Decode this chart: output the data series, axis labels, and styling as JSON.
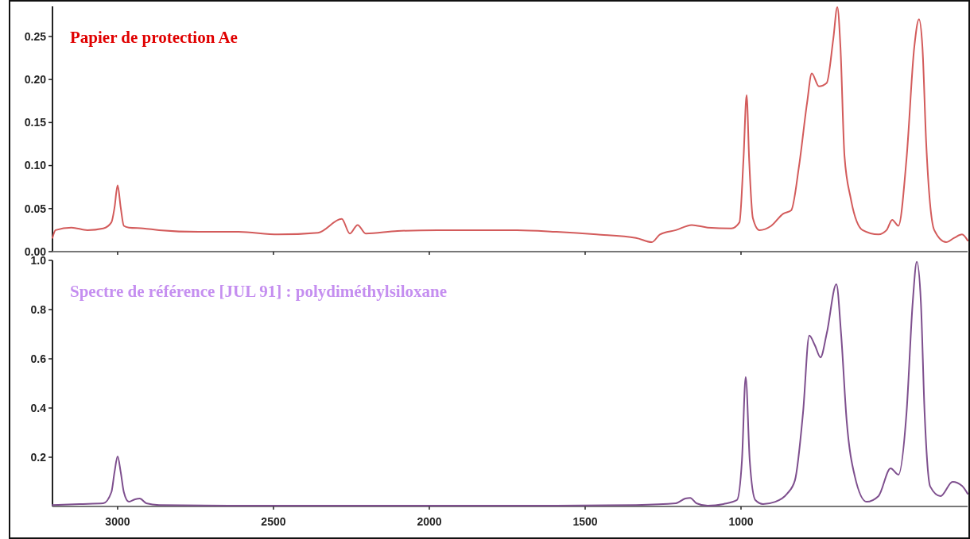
{
  "chart_data": [
    {
      "type": "line",
      "title": "Papier de protection Ae",
      "xlim": [
        3209,
        273
      ],
      "xticks": [
        3000,
        2500,
        2000,
        1500,
        1000
      ],
      "ylim": [
        0,
        0.285
      ],
      "yticks": [
        {
          "value": 0.25,
          "label": "0.25"
        },
        {
          "value": 0.2,
          "label": "0.20"
        },
        {
          "value": 0.15,
          "label": "0.15"
        },
        {
          "value": 0.1,
          "label": "0.10"
        },
        {
          "value": 0.05,
          "label": "0.05"
        },
        {
          "value": 0,
          "label": "0.00"
        }
      ],
      "tick_labels": "y",
      "series": [
        {
          "color": "#d35b5b",
          "x": [
            3209,
            3199,
            3148,
            3097,
            3046,
            3020,
            3010,
            3000,
            2990,
            2980,
            2964,
            2918,
            2867,
            2740,
            2612,
            2485,
            2357,
            2281,
            2255,
            2230,
            2204,
            2102,
            1974,
            1847,
            1719,
            1592,
            1464,
            1337,
            1286,
            1260,
            1209,
            1158,
            1107,
            1031,
            1005,
            992,
            982,
            974,
            962,
            941,
            903,
            865,
            839,
            814,
            788,
            773,
            750,
            725,
            704,
            691,
            681,
            668,
            648,
            610,
            559,
            533,
            515,
            495,
            469,
            444,
            429,
            418,
            406,
            380,
            342,
            316,
            291,
            273
          ],
          "values": [
            0.016,
            0.025,
            0.028,
            0.025,
            0.027,
            0.034,
            0.051,
            0.077,
            0.051,
            0.03,
            0.028,
            0.027,
            0.025,
            0.023,
            0.023,
            0.02,
            0.022,
            0.038,
            0.021,
            0.031,
            0.021,
            0.024,
            0.025,
            0.025,
            0.025,
            0.023,
            0.02,
            0.016,
            0.011,
            0.02,
            0.025,
            0.031,
            0.028,
            0.027,
            0.034,
            0.108,
            0.182,
            0.108,
            0.039,
            0.025,
            0.03,
            0.044,
            0.048,
            0.099,
            0.173,
            0.207,
            0.192,
            0.196,
            0.247,
            0.284,
            0.238,
            0.111,
            0.062,
            0.025,
            0.02,
            0.025,
            0.037,
            0.03,
            0.108,
            0.238,
            0.27,
            0.238,
            0.127,
            0.025,
            0.011,
            0.016,
            0.02,
            0.013
          ]
        }
      ]
    },
    {
      "type": "line",
      "title": "Spectre de référence [JUL 91] : polydiméthylsiloxane",
      "xlim": [
        3209,
        273
      ],
      "xticks": [
        3000,
        2500,
        2000,
        1500,
        1000
      ],
      "ylim": [
        0,
        1.0
      ],
      "yticks": [
        {
          "value": 1,
          "label": "1.0"
        },
        0.8,
        0.6,
        0.4,
        0.2
      ],
      "series": [
        {
          "color": "#7e4f8e",
          "x": [
            3209,
            3122,
            3046,
            3020,
            3010,
            3000,
            2990,
            2980,
            2964,
            2944,
            2929,
            2908,
            2867,
            2612,
            2102,
            1592,
            1337,
            1209,
            1179,
            1163,
            1143,
            1107,
            1056,
            1013,
            997,
            985,
            972,
            954,
            929,
            890,
            852,
            827,
            801,
            781,
            763,
            745,
            725,
            694,
            679,
            661,
            635,
            597,
            559,
            520,
            495,
            469,
            449,
            436,
            423,
            411,
            393,
            360,
            321,
            291,
            273
          ],
          "values": [
            0.006,
            0.01,
            0.013,
            0.058,
            0.139,
            0.203,
            0.139,
            0.058,
            0.019,
            0.029,
            0.032,
            0.013,
            0.006,
            0.003,
            0.003,
            0.003,
            0.006,
            0.013,
            0.032,
            0.035,
            0.013,
            0.003,
            0.01,
            0.026,
            0.187,
            0.526,
            0.187,
            0.026,
            0.01,
            0.019,
            0.052,
            0.106,
            0.381,
            0.694,
            0.655,
            0.606,
            0.703,
            0.903,
            0.703,
            0.348,
            0.123,
            0.019,
            0.042,
            0.155,
            0.129,
            0.381,
            0.832,
            0.994,
            0.832,
            0.381,
            0.081,
            0.042,
            0.1,
            0.084,
            0.052
          ]
        }
      ]
    }
  ]
}
